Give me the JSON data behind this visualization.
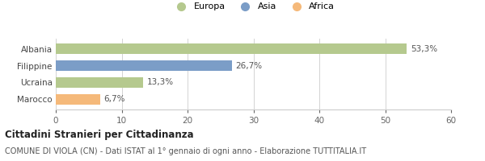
{
  "categories": [
    "Albania",
    "Filippine",
    "Ucraina",
    "Marocco"
  ],
  "values": [
    53.3,
    26.7,
    13.3,
    6.7
  ],
  "labels": [
    "53,3%",
    "26,7%",
    "13,3%",
    "6,7%"
  ],
  "colors": [
    "#b5c98e",
    "#7b9dc7",
    "#b5c98e",
    "#f5b97a"
  ],
  "legend": [
    {
      "label": "Europa",
      "color": "#b5c98e"
    },
    {
      "label": "Asia",
      "color": "#7b9dc7"
    },
    {
      "label": "Africa",
      "color": "#f5b97a"
    }
  ],
  "xlim": [
    0,
    60
  ],
  "xticks": [
    0,
    10,
    20,
    30,
    40,
    50,
    60
  ],
  "title": "Cittadini Stranieri per Cittadinanza",
  "subtitle": "COMUNE DI VIOLA (CN) - Dati ISTAT al 1° gennaio di ogni anno - Elaborazione TUTTITALIA.IT",
  "background_color": "#ffffff",
  "bar_height": 0.6,
  "title_fontsize": 8.5,
  "subtitle_fontsize": 7.0,
  "label_fontsize": 7.5,
  "tick_fontsize": 7.5,
  "legend_fontsize": 8.0
}
